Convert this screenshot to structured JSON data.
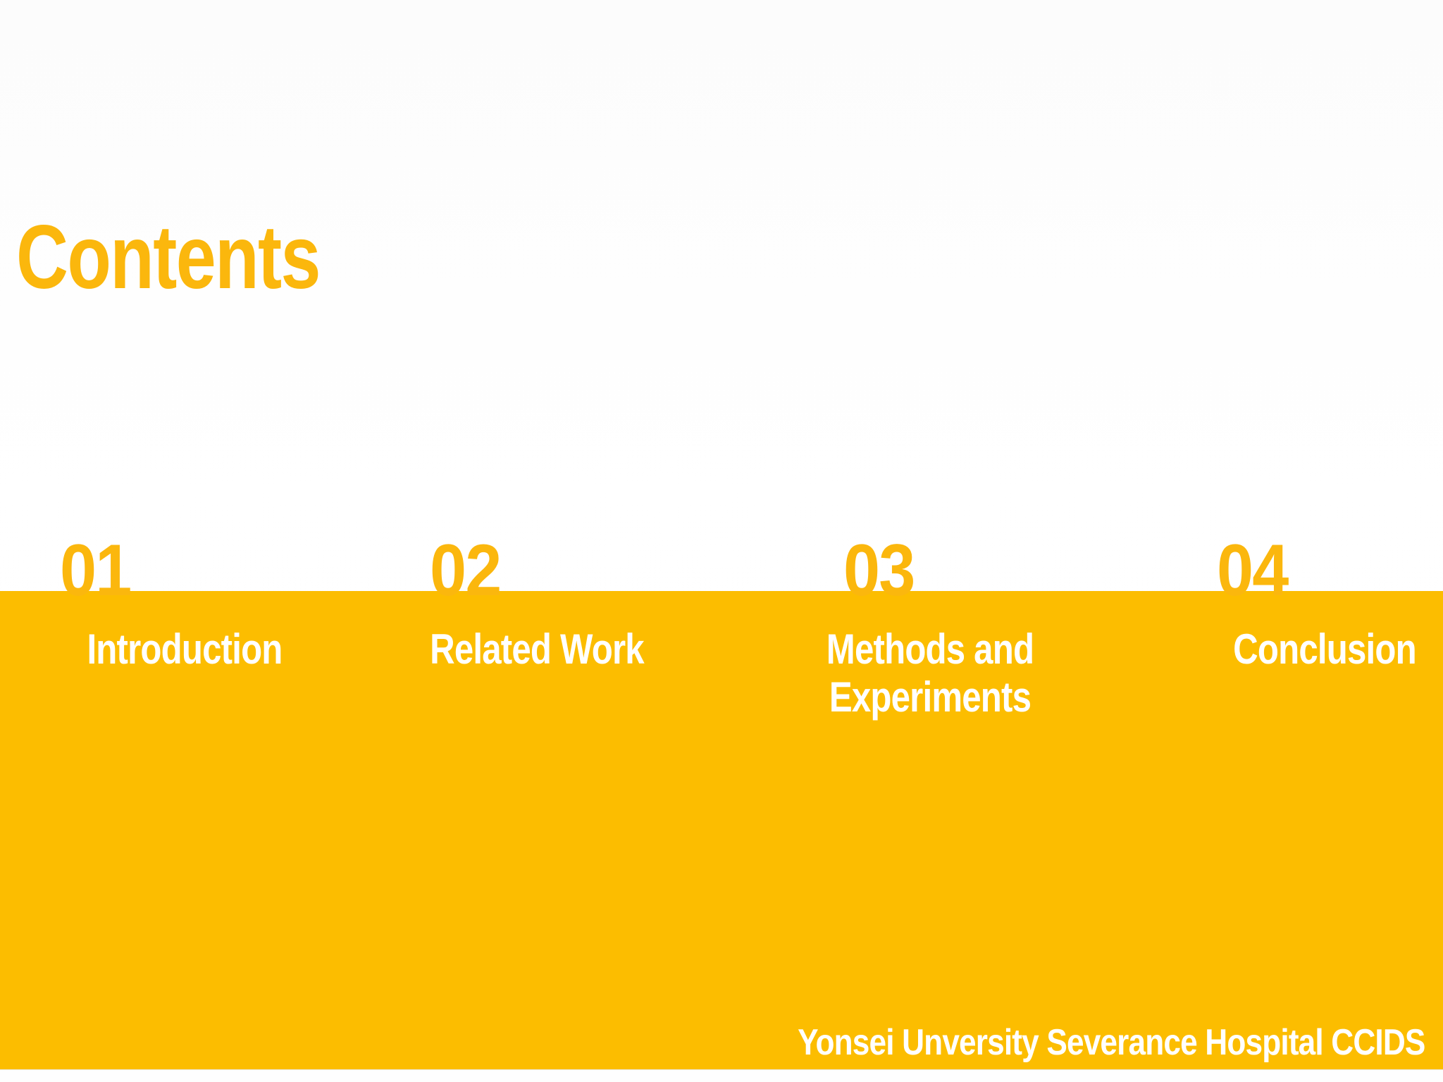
{
  "slide": {
    "title": "Contents",
    "sections": [
      {
        "number": "01",
        "label": "Introduction"
      },
      {
        "number": "02",
        "label": "Related Work"
      },
      {
        "number": "03",
        "label": "Methods and\nExperiments"
      },
      {
        "number": "04",
        "label": "Conclusion"
      }
    ],
    "footer": "Yonsei Unversity Severance Hospital CCIDS",
    "colors": {
      "gold_text": "#fbb70d",
      "band": "#fcbd00",
      "label_text": "#ffffff",
      "background": "#fdfdfd"
    }
  }
}
